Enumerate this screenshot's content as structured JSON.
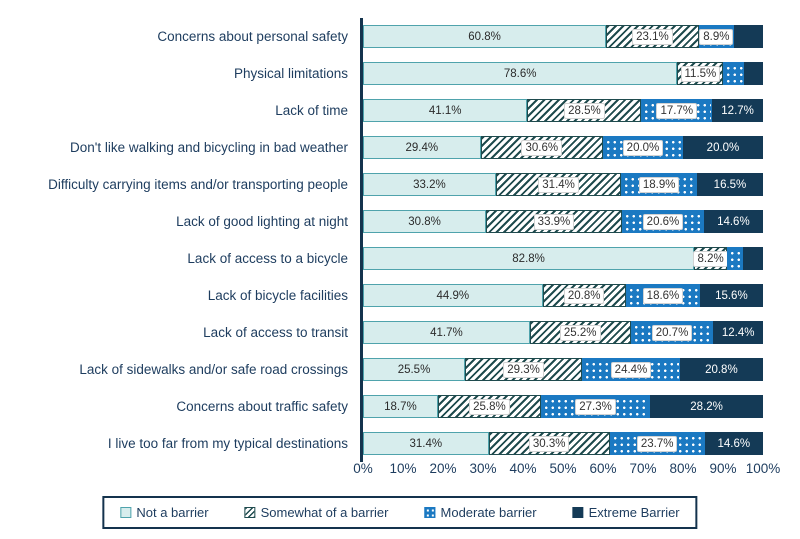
{
  "chart_data": {
    "type": "bar",
    "orientation": "horizontal-stacked",
    "title": "",
    "xlabel": "",
    "ylabel": "",
    "xlim": [
      0,
      100
    ],
    "x_ticks": [
      "0%",
      "10%",
      "20%",
      "30%",
      "40%",
      "50%",
      "60%",
      "70%",
      "80%",
      "90%",
      "100%"
    ],
    "legend_position": "bottom",
    "grid": false,
    "categories": [
      "Concerns about personal safety",
      "Physical limitations",
      "Lack of time",
      "Don't like walking and bicycling in bad weather",
      "Difficulty carrying items and/or transporting people",
      "Lack of good lighting at night",
      "Lack of access to a bicycle",
      "Lack of bicycle facilities",
      "Lack of access to transit",
      "Lack of sidewalks and/or safe road crossings",
      "Concerns about traffic safety",
      "I live too far from my typical destinations"
    ],
    "series": [
      {
        "name": "Not a barrier",
        "values": [
          60.8,
          78.6,
          41.1,
          29.4,
          33.2,
          30.8,
          82.8,
          44.9,
          41.7,
          25.5,
          18.7,
          31.4
        ],
        "labels": [
          "60.8%",
          "78.6%",
          "41.1%",
          "29.4%",
          "33.2%",
          "30.8%",
          "82.8%",
          "44.9%",
          "41.7%",
          "25.5%",
          "18.7%",
          "31.4%"
        ],
        "label_style": "plain"
      },
      {
        "name": "Somewhat of a barrier",
        "values": [
          23.1,
          11.5,
          28.5,
          30.6,
          31.4,
          33.9,
          8.2,
          20.8,
          25.2,
          29.3,
          25.8,
          30.3
        ],
        "labels": [
          "23.1%",
          "11.5%",
          "28.5%",
          "30.6%",
          "31.4%",
          "33.9%",
          "8.2%",
          "20.8%",
          "25.2%",
          "29.3%",
          "25.8%",
          "30.3%"
        ],
        "label_style": "box"
      },
      {
        "name": "Moderate barrier",
        "values": [
          8.9,
          5.2,
          17.7,
          20.0,
          18.9,
          20.6,
          4.1,
          18.6,
          20.7,
          24.4,
          27.3,
          23.7
        ],
        "labels": [
          "8.9%",
          "",
          "17.7%",
          "20.0%",
          "18.9%",
          "20.6%",
          "",
          "18.6%",
          "20.7%",
          "24.4%",
          "27.3%",
          "23.7%"
        ],
        "label_style": "box"
      },
      {
        "name": "Extreme Barrier",
        "values": [
          7.2,
          4.7,
          12.7,
          20.0,
          16.5,
          14.6,
          4.9,
          15.6,
          12.4,
          20.8,
          28.2,
          14.6
        ],
        "labels": [
          "",
          "",
          "12.7%",
          "20.0%",
          "16.5%",
          "14.6%",
          "",
          "15.6%",
          "12.4%",
          "20.8%",
          "28.2%",
          "14.6%"
        ],
        "label_style": "white"
      }
    ]
  },
  "legend": {
    "items": [
      {
        "label": "Not a barrier",
        "swatch": "not"
      },
      {
        "label": "Somewhat of a barrier",
        "swatch": "somewhat"
      },
      {
        "label": "Moderate barrier",
        "swatch": "moderate"
      },
      {
        "label": "Extreme Barrier",
        "swatch": "extreme"
      }
    ]
  },
  "colors": {
    "not_barrier_fill": "#d7eded",
    "not_barrier_border": "#4fa3ac",
    "somewhat_hatch": "#1f4b4e",
    "moderate_blue": "#1b79c2",
    "extreme_navy": "#143a56",
    "axis_text": "#1d3c5e",
    "axis_line": "#14334d"
  }
}
